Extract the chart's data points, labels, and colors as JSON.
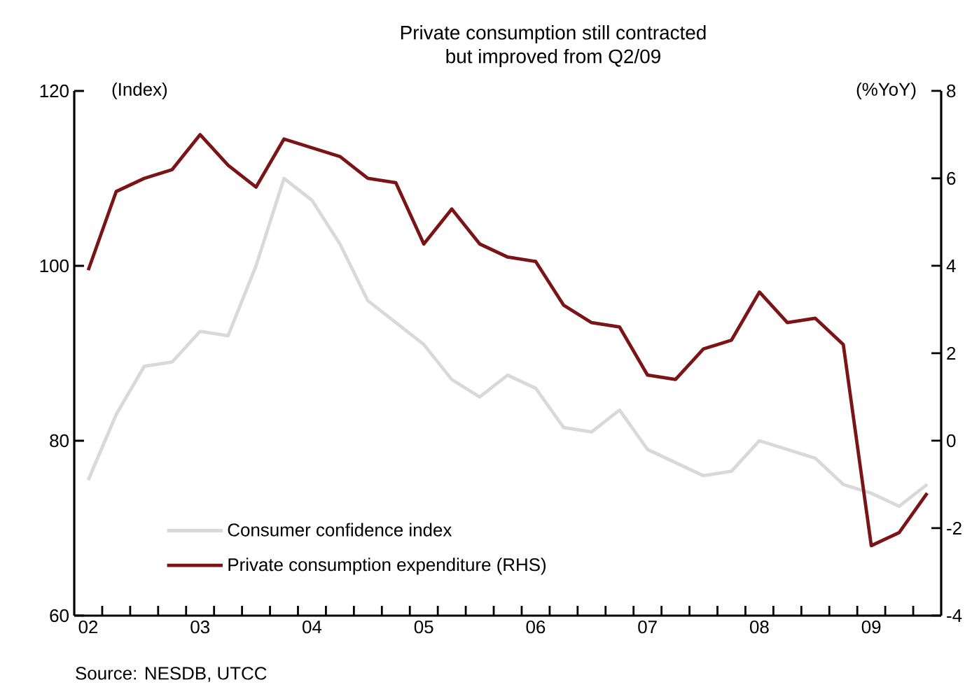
{
  "chart_data": {
    "type": "line",
    "title": "Private consumption still contracted\nbut improved from Q2/09",
    "ylabel": "(Index)",
    "y2label": "(%YoY)",
    "annotations": [
      "Source: NESDB, UTCC"
    ],
    "x": [
      2002.0,
      2002.25,
      2002.5,
      2002.75,
      2003.0,
      2003.25,
      2003.5,
      2003.75,
      2004.0,
      2004.25,
      2004.5,
      2004.75,
      2005.0,
      2005.25,
      2005.5,
      2005.75,
      2006.0,
      2006.25,
      2006.5,
      2006.75,
      2007.0,
      2007.25,
      2007.5,
      2007.75,
      2008.0,
      2008.25,
      2008.5,
      2008.75,
      2009.0,
      2009.25,
      2009.5
    ],
    "series": [
      {
        "name": "Consumer confidence index",
        "color": "#d9d9d9",
        "values": [
          75.5,
          83,
          88.5,
          89,
          92.5,
          92,
          100,
          110,
          107.5,
          102.5,
          96,
          93.5,
          91,
          87,
          85,
          87.5,
          86,
          81.5,
          81,
          83.5,
          79,
          77.5,
          76,
          76.5,
          80,
          79,
          78,
          75,
          74,
          72.5,
          75
        ]
      },
      {
        "name": "Private consumption expenditure (RHS)",
        "color": "#7b1416",
        "axis": "y2",
        "values": [
          3.9,
          5.7,
          6.0,
          6.2,
          7.0,
          6.3,
          5.8,
          6.9,
          6.7,
          6.5,
          6.0,
          5.9,
          4.5,
          5.3,
          4.5,
          4.2,
          4.1,
          3.1,
          2.7,
          2.6,
          1.5,
          1.4,
          2.1,
          2.3,
          3.4,
          2.7,
          2.8,
          2.2,
          -2.4,
          -2.1,
          -1.2
        ]
      }
    ],
    "xlim": [
      2001.875,
      2009.625
    ],
    "xticks": [
      {
        "value": 2002,
        "label": "02"
      },
      {
        "value": 2003,
        "label": "03"
      },
      {
        "value": 2004,
        "label": "04"
      },
      {
        "value": 2005,
        "label": "05"
      },
      {
        "value": 2006,
        "label": "06"
      },
      {
        "value": 2007,
        "label": "07"
      },
      {
        "value": 2008,
        "label": "08"
      },
      {
        "value": 2009,
        "label": "09"
      },
      {
        "value": 2002.125,
        "label": null
      },
      {
        "value": 2002.375,
        "label": null
      },
      {
        "value": 2002.625,
        "label": null
      },
      {
        "value": 2002.875,
        "label": null
      },
      {
        "value": 2003.125,
        "label": null
      },
      {
        "value": 2003.375,
        "label": null
      },
      {
        "value": 2003.625,
        "label": null
      },
      {
        "value": 2003.875,
        "label": null
      },
      {
        "value": 2004.125,
        "label": null
      },
      {
        "value": 2004.375,
        "label": null
      },
      {
        "value": 2004.625,
        "label": null
      },
      {
        "value": 2004.875,
        "label": null
      },
      {
        "value": 2005.125,
        "label": null
      },
      {
        "value": 2005.375,
        "label": null
      },
      {
        "value": 2005.625,
        "label": null
      },
      {
        "value": 2005.875,
        "label": null
      },
      {
        "value": 2006.125,
        "label": null
      },
      {
        "value": 2006.375,
        "label": null
      },
      {
        "value": 2006.625,
        "label": null
      },
      {
        "value": 2006.875,
        "label": null
      },
      {
        "value": 2007.125,
        "label": null
      },
      {
        "value": 2007.375,
        "label": null
      },
      {
        "value": 2007.625,
        "label": null
      },
      {
        "value": 2007.875,
        "label": null
      },
      {
        "value": 2008.125,
        "label": null
      },
      {
        "value": 2008.375,
        "label": null
      },
      {
        "value": 2008.625,
        "label": null
      },
      {
        "value": 2008.875,
        "label": null
      },
      {
        "value": 2009.125,
        "label": null
      },
      {
        "value": 2009.375,
        "label": null
      }
    ],
    "ylim": [
      60,
      120
    ],
    "yticks": [
      60,
      80,
      100,
      120
    ],
    "y2lim": [
      -4,
      8
    ],
    "y2ticks": [
      -4,
      -2,
      0,
      2,
      4,
      6,
      8
    ],
    "legend": "bottom left",
    "marker": "none",
    "line_style": "solid",
    "grid": false
  }
}
